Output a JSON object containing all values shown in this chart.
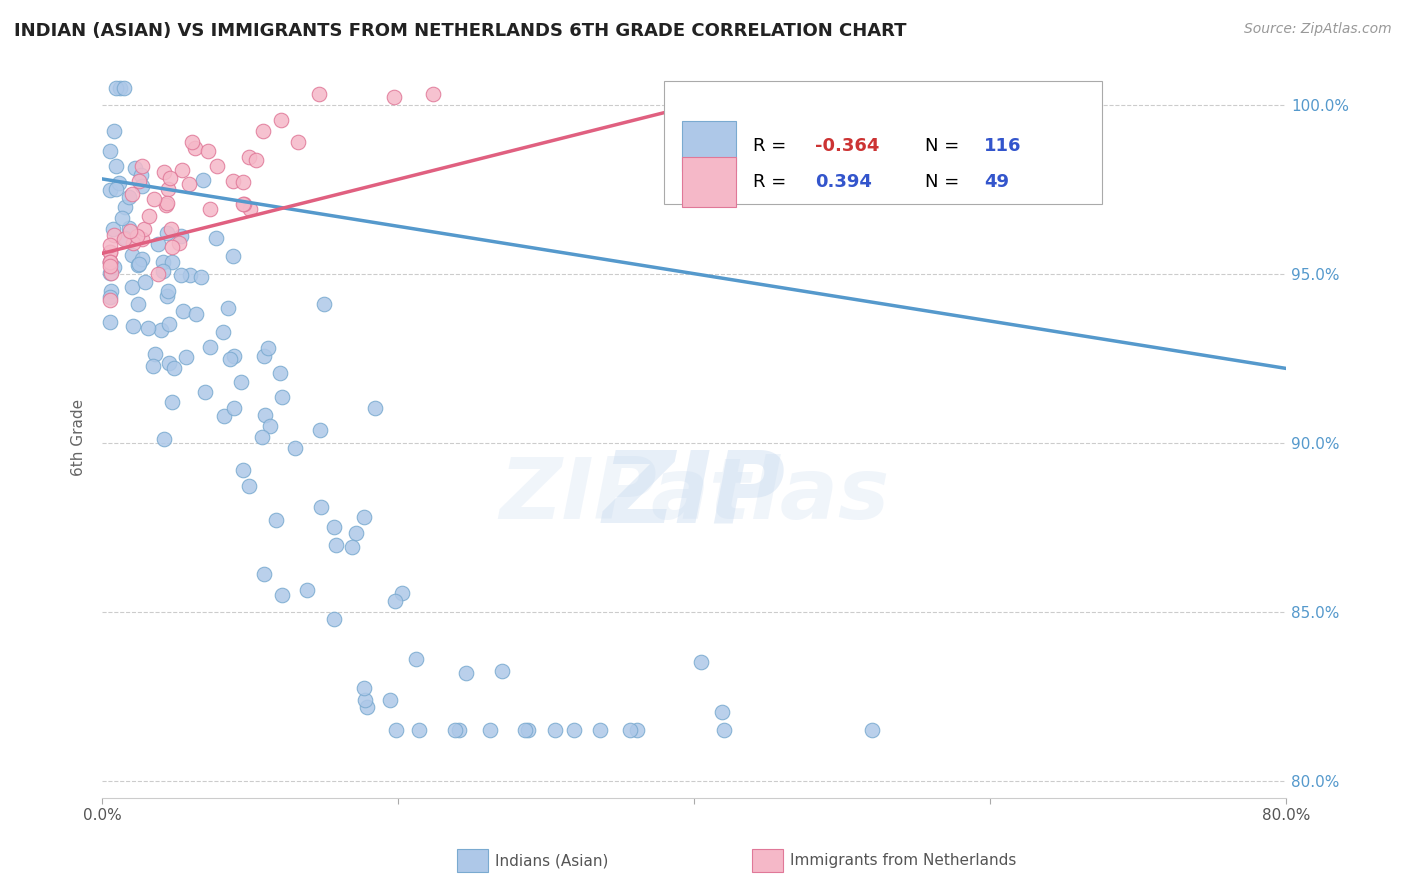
{
  "title": "INDIAN (ASIAN) VS IMMIGRANTS FROM NETHERLANDS 6TH GRADE CORRELATION CHART",
  "source": "Source: ZipAtlas.com",
  "ylabel": "6th Grade",
  "watermark": "ZIPatlas",
  "xlim": [
    0.0,
    0.8
  ],
  "ylim": [
    0.795,
    1.008
  ],
  "ytick_labels_right": [
    "80.0%",
    "85.0%",
    "90.0%",
    "95.0%",
    "100.0%"
  ],
  "yticks_right": [
    0.8,
    0.85,
    0.9,
    0.95,
    1.0
  ],
  "legend_r_blue": "-0.364",
  "legend_n_blue": "116",
  "legend_r_pink": "0.394",
  "legend_n_pink": "49",
  "blue_color": "#aec8e8",
  "blue_edge": "#7aaad0",
  "pink_color": "#f5b8c8",
  "pink_edge": "#e07898",
  "blue_line_color": "#5599cc",
  "pink_line_color": "#e06080",
  "background_color": "#ffffff",
  "grid_color": "#cccccc",
  "title_color": "#222222",
  "axis_label_color": "#666666",
  "right_tick_color": "#5599cc",
  "blue_trendline_x": [
    0.0,
    0.8
  ],
  "blue_trendline_y": [
    0.978,
    0.922
  ],
  "pink_trendline_x": [
    0.0,
    0.42
  ],
  "pink_trendline_y": [
    0.956,
    1.002
  ]
}
